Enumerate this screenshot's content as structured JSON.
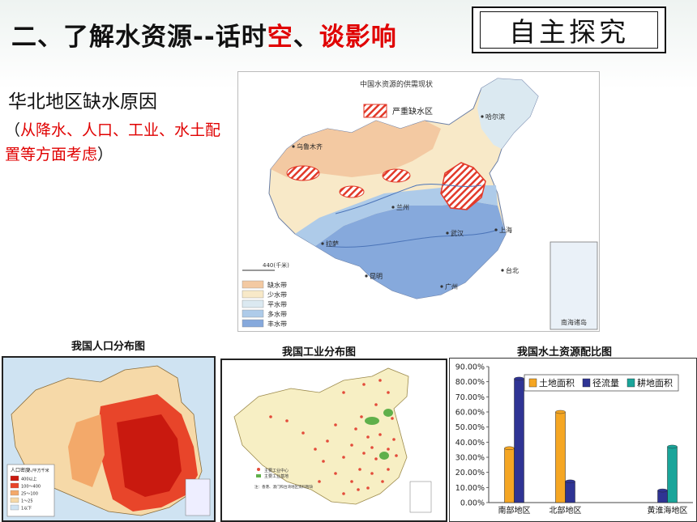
{
  "title": {
    "prefix": "二、了解水资源--话时",
    "hl1": "空",
    "mid": "、",
    "hl2": "谈影响"
  },
  "badge": "自主探究",
  "reason": {
    "title": "华北地区缺水原因",
    "open": "（",
    "hint_red": "从降水、人口、工业、水土配置等方面考虑",
    "close": "）"
  },
  "main_map": {
    "title": "中国水资源的供需现状",
    "legend_severe": "严重缺水区",
    "cities": [
      "乌鲁木齐",
      "哈尔滨",
      "兰州",
      "拉萨",
      "武汉",
      "上海",
      "昆明",
      "广州",
      "台北"
    ],
    "scale": "440(千米)",
    "inset": "南海诸岛",
    "legend": [
      {
        "label": "缺水带",
        "color": "#f3c9a2"
      },
      {
        "label": "少水带",
        "color": "#f8e9c8"
      },
      {
        "label": "平水带",
        "color": "#dbe9f1"
      },
      {
        "label": "多水带",
        "color": "#aecbe9"
      },
      {
        "label": "丰水带",
        "color": "#86a9dc"
      }
    ],
    "severe_color": "#e23a2a"
  },
  "captions": {
    "population": "我国人口分布图",
    "industry": "我国工业分布图",
    "water_soil": "我国水土资源配比图"
  },
  "population_map": {
    "legend_title": "人口密度",
    "legend_unit": "人/平方千米",
    "legend_items": [
      "400以上",
      "100～400",
      "25～100",
      "1～25",
      "1以下"
    ]
  },
  "industry_map": {
    "legend": [
      "主要工业中心",
      "主要工业基地"
    ],
    "note": "注：香港、澳门和台湾地区资料暂缺"
  },
  "chart_data": {
    "type": "bar",
    "title": "我国水土资源配比图",
    "categories": [
      "南部地区",
      "北部地区",
      "",
      "黄淮海地区"
    ],
    "series": [
      {
        "name": "土地面积",
        "color": "#f5a623",
        "values": [
          0.36,
          0.6,
          null,
          null
        ]
      },
      {
        "name": "径流量",
        "color": "#2f3494",
        "values": [
          0.82,
          0.14,
          null,
          0.08
        ]
      },
      {
        "name": "耕地面积",
        "color": "#1aa59a",
        "values": [
          null,
          null,
          null,
          0.37
        ]
      }
    ],
    "yticks": [
      "90.00%",
      "80.00%",
      "70.00%",
      "60.00%",
      "50.00%",
      "40.00%",
      "30.00%",
      "20.00%",
      "10.00%",
      "0.00%"
    ],
    "ylim": [
      0,
      0.9
    ]
  }
}
